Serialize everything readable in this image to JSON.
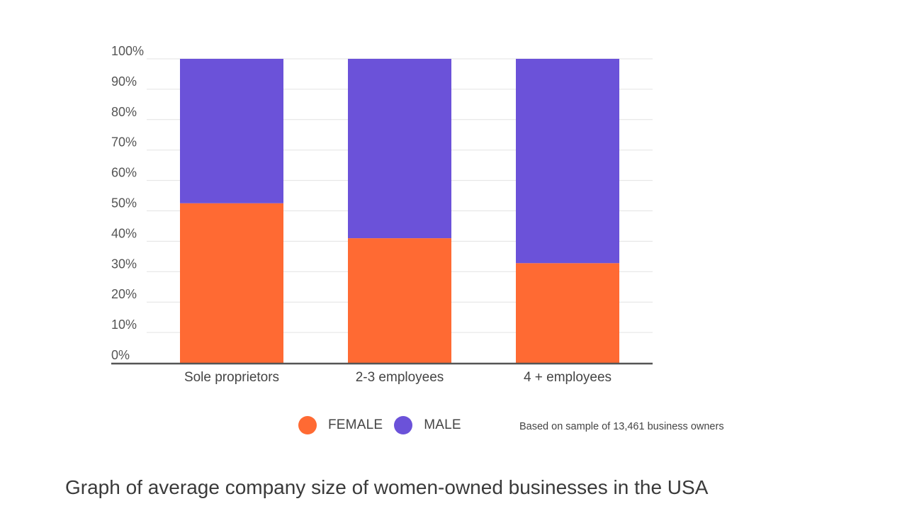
{
  "chart_data": {
    "type": "bar",
    "stacked": true,
    "categories": [
      "Sole proprietors",
      "2-3 employees",
      "4 + employees"
    ],
    "series": [
      {
        "name": "FEMALE",
        "color": "#ff6a33",
        "values": [
          52.5,
          41,
          32.8
        ]
      },
      {
        "name": "MALE",
        "color": "#6b52d9",
        "values": [
          47.5,
          59,
          67.2
        ]
      }
    ],
    "ylim": [
      0,
      100
    ],
    "yticks": [
      "0%",
      "10%",
      "20%",
      "30%",
      "40%",
      "50%",
      "60%",
      "70%",
      "80%",
      "90%",
      "100%"
    ],
    "grid": true,
    "legend": "bottom"
  },
  "note": "Based on sample of 13,461 business owners",
  "caption": "Graph of average company size of women-owned businesses in the USA"
}
